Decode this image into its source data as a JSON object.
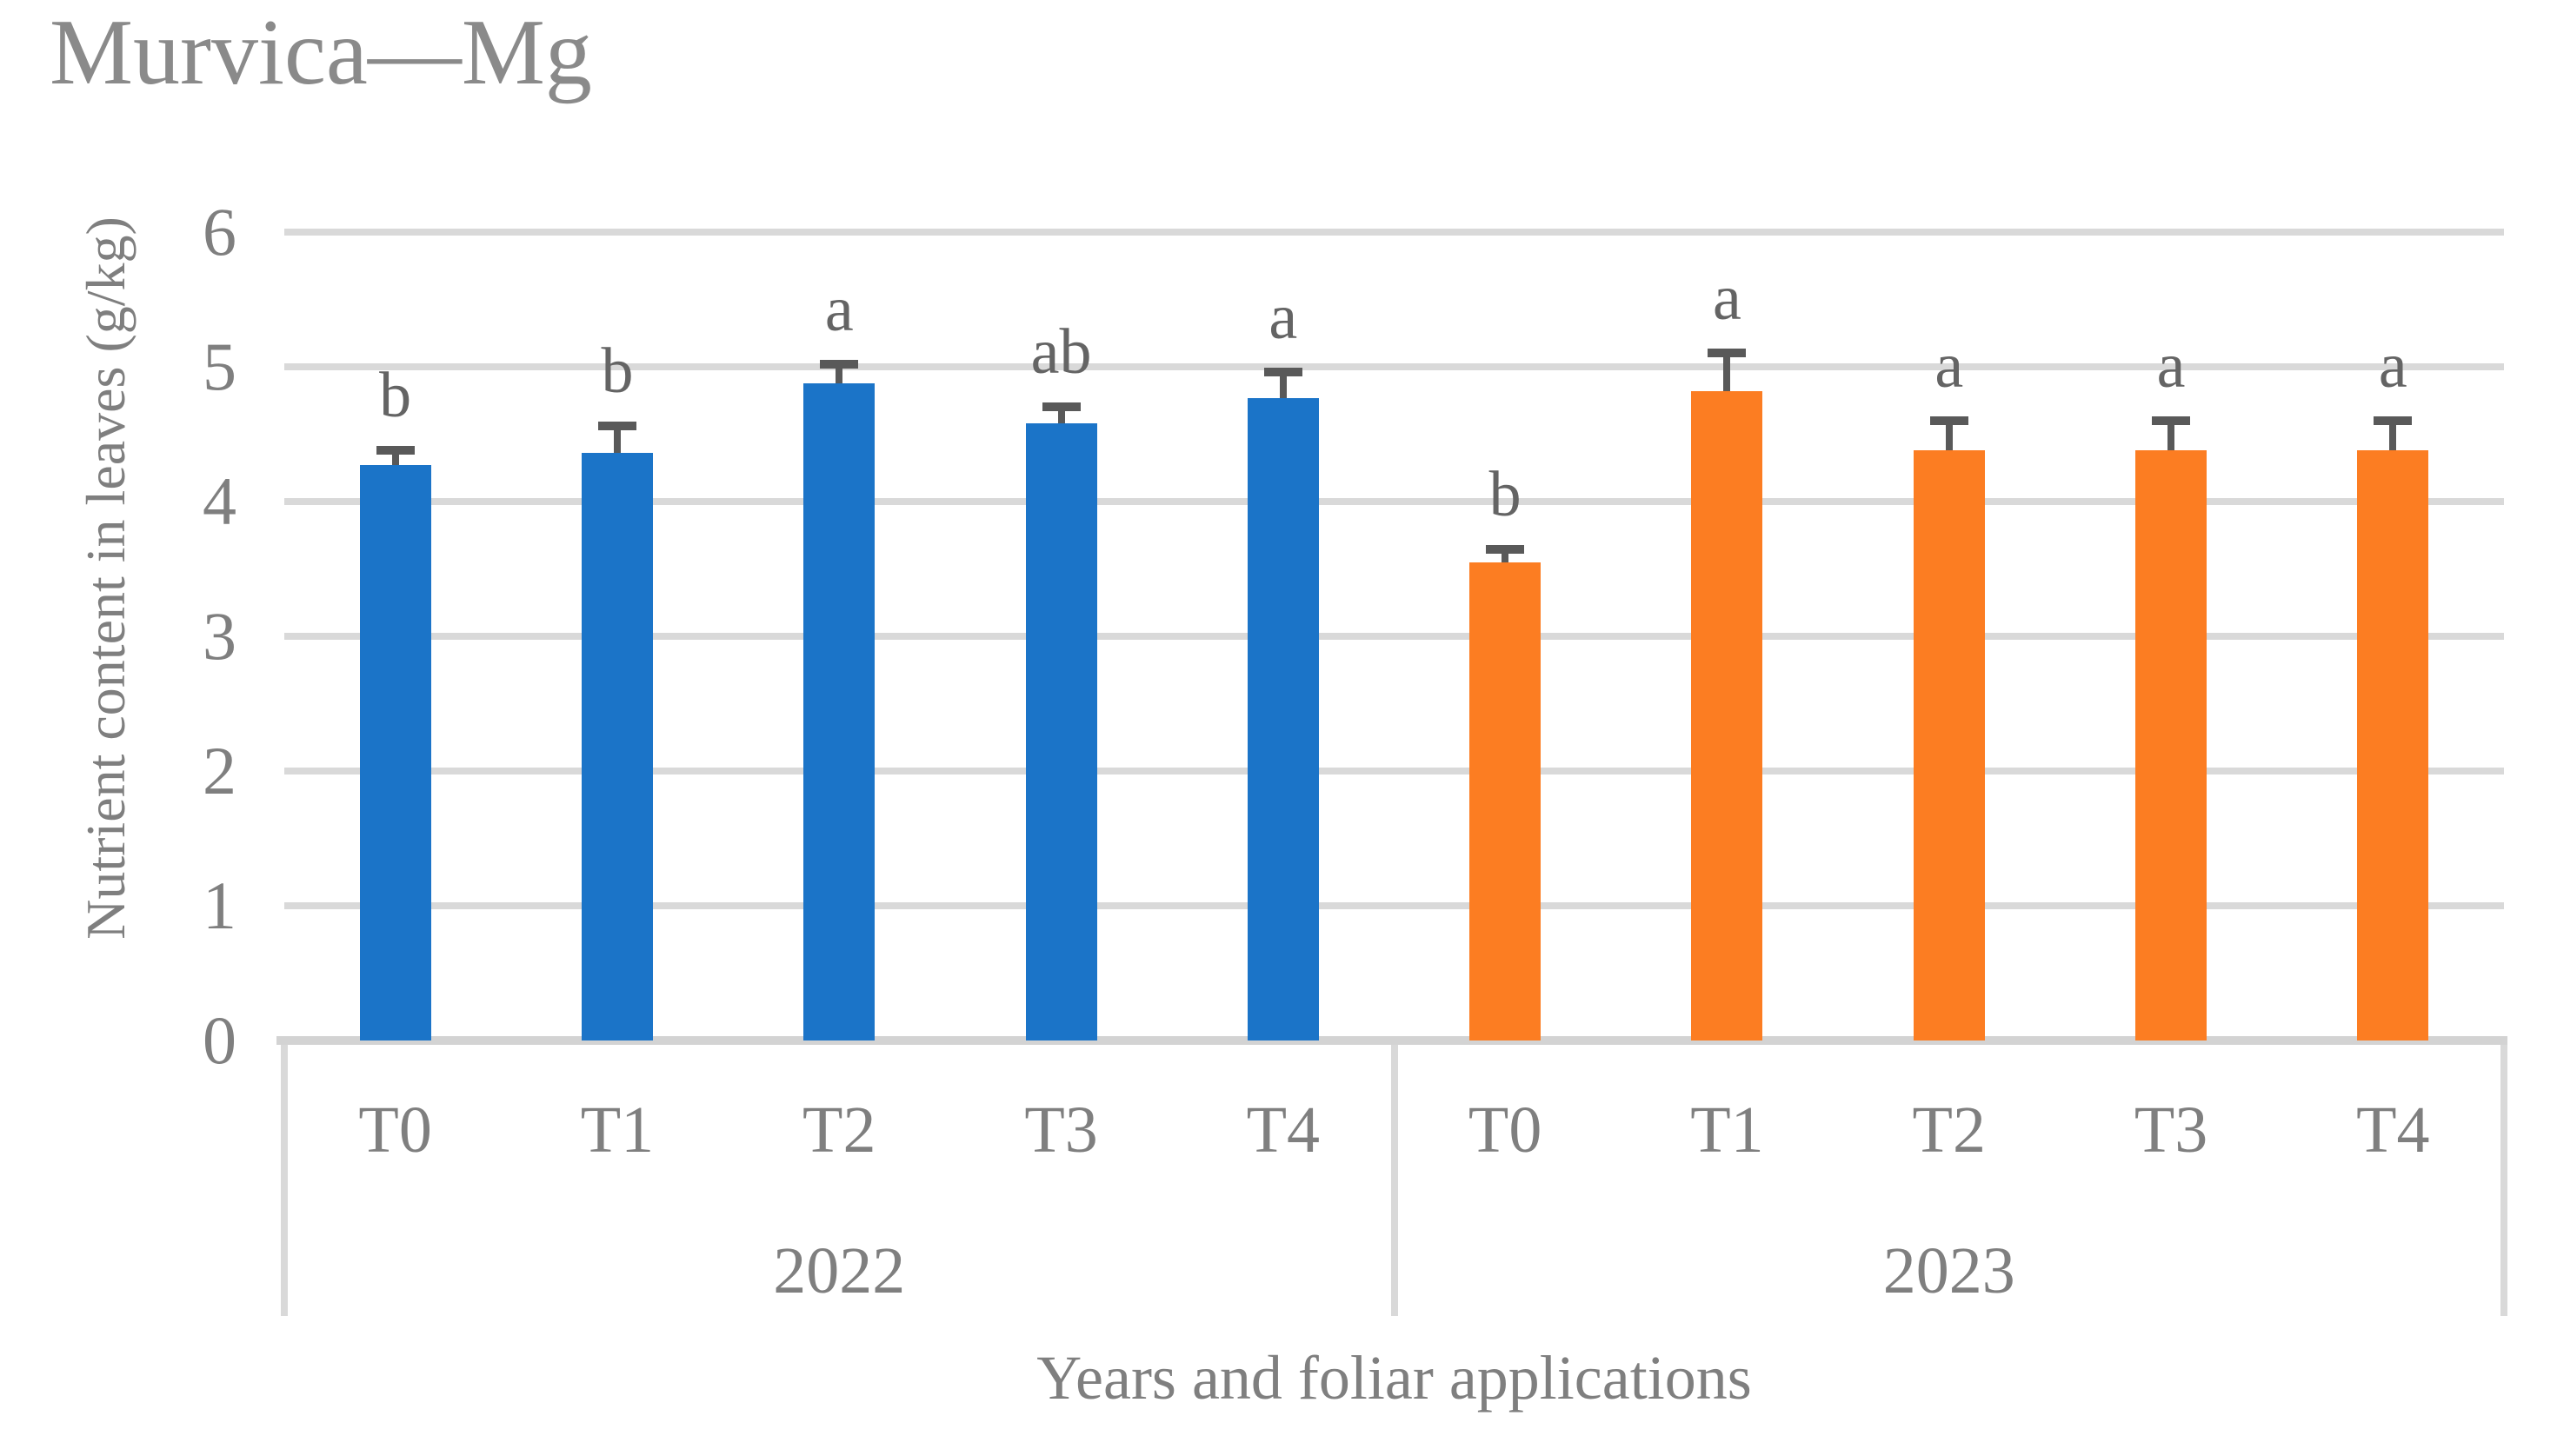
{
  "title": "Murvica—Mg",
  "axes": {
    "y_title": "Nutrient content in leaves (g/kg)",
    "x_title": "Years and foliar applications"
  },
  "chart_data": {
    "type": "bar",
    "title": "Murvica—Mg",
    "xlabel": "Years and foliar applications",
    "ylabel": "Nutrient content in leaves (g/kg)",
    "ylim": [
      0,
      6
    ],
    "yticks": [
      0,
      1,
      2,
      3,
      4,
      5,
      6
    ],
    "grid": true,
    "legend_position": "none",
    "categories": [
      "T0",
      "T1",
      "T2",
      "T3",
      "T4"
    ],
    "series": [
      {
        "name": "2022",
        "color": "#1B74C8",
        "values": [
          4.27,
          4.36,
          4.88,
          4.58,
          4.77
        ],
        "errors": [
          0.08,
          0.17,
          0.11,
          0.09,
          0.16
        ],
        "sig_letters": [
          "b",
          "b",
          "a",
          "ab",
          "a"
        ]
      },
      {
        "name": "2023",
        "color": "#FC7D22",
        "values": [
          3.55,
          4.82,
          4.38,
          4.38,
          4.38
        ],
        "errors": [
          0.06,
          0.25,
          0.19,
          0.19,
          0.19
        ],
        "sig_letters": [
          "b",
          "a",
          "a",
          "a",
          "a"
        ]
      }
    ]
  },
  "colors": {
    "grid": "#D9D9D9",
    "axis_line": "#D3D3D3",
    "table_border": "#D9D9D9",
    "error_bar": "#595959",
    "tick_text": "#7F7F7F",
    "title_text": "#8A8A8A",
    "letter_text": "#646464"
  }
}
